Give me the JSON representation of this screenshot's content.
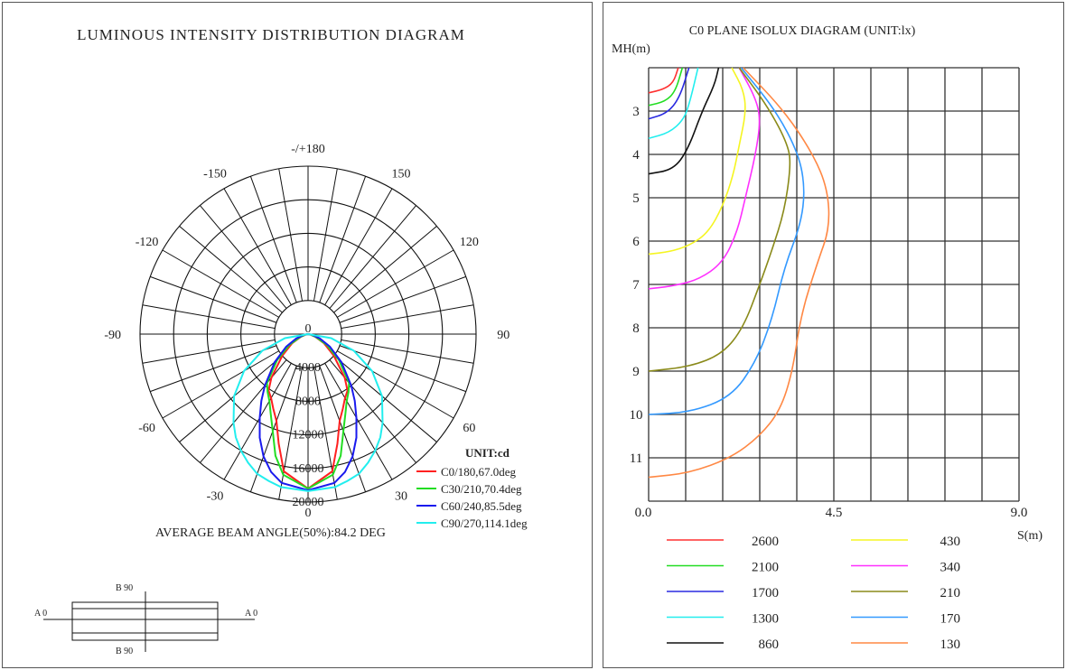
{
  "chart_data": [
    {
      "type": "polar",
      "title": "LUMINOUS INTENSITY DISTRIBUTION DIAGRAM",
      "unit_label": "UNIT:cd",
      "radial_ticks": [
        "0",
        "4000",
        "8000",
        "12000",
        "16000",
        "20000"
      ],
      "radial_max": 20000,
      "angle_labels": [
        {
          "angle": 180,
          "text": "-/+180"
        },
        {
          "angle": 150,
          "text": "150"
        },
        {
          "angle": -150,
          "text": "-150"
        },
        {
          "angle": 120,
          "text": "120"
        },
        {
          "angle": -120,
          "text": "-120"
        },
        {
          "angle": 90,
          "text": "90"
        },
        {
          "angle": -90,
          "text": "-90"
        },
        {
          "angle": 60,
          "text": "60"
        },
        {
          "angle": -60,
          "text": "-60"
        },
        {
          "angle": 30,
          "text": "30"
        },
        {
          "angle": -30,
          "text": "-30"
        },
        {
          "angle": 0,
          "text": "0"
        }
      ],
      "angles": [
        0,
        10,
        15,
        20,
        25,
        30,
        35,
        40,
        50,
        60,
        70,
        80,
        90
      ],
      "series": [
        {
          "name": "C0/180,67.0deg",
          "color": "#ff2020",
          "values": [
            18400,
            16600,
            13500,
            11000,
            9800,
            8800,
            8200,
            6800,
            4000,
            2200,
            900,
            200,
            0
          ]
        },
        {
          "name": "C30/210,70.4deg",
          "color": "#22dd22",
          "values": [
            18400,
            17000,
            15000,
            12300,
            10500,
            9200,
            8400,
            7600,
            4800,
            2600,
            1000,
            300,
            0
          ]
        },
        {
          "name": "C60/240,85.5deg",
          "color": "#1a1aee",
          "values": [
            18600,
            18000,
            17000,
            15500,
            13600,
            11500,
            9700,
            8000,
            5200,
            3000,
            1500,
            500,
            0
          ]
        },
        {
          "name": "C90/270,114.1deg",
          "color": "#22eeee",
          "values": [
            18700,
            18500,
            18100,
            17700,
            16900,
            16000,
            15000,
            13800,
            11500,
            8800,
            5800,
            2800,
            0
          ]
        }
      ],
      "beam_angle_text": "AVERAGE BEAM ANGLE(50%):84.2 DEG",
      "luminaire_key": {
        "a_label": "A 0",
        "b_label": "B 90"
      }
    },
    {
      "type": "line",
      "title": "C0 PLANE ISOLUX DIAGRAM (UNIT:lx)",
      "ylabel": "MH(m)",
      "xlabel": "S(m)",
      "xlim": [
        0,
        9
      ],
      "ylim": [
        2,
        12
      ],
      "x_ticks": [
        "0.0",
        "4.5",
        "9.0"
      ],
      "x_tick_values": [
        0,
        4.5,
        9
      ],
      "y_ticks": [
        "3",
        "4",
        "5",
        "6",
        "7",
        "8",
        "9",
        "10",
        "11"
      ],
      "grid": true,
      "series": [
        {
          "name": "2600",
          "color": "#ff3030",
          "points": [
            [
              0,
              2.58
            ],
            [
              0.35,
              2.5
            ],
            [
              0.6,
              2.35
            ],
            [
              0.72,
              2.0
            ]
          ]
        },
        {
          "name": "2100",
          "color": "#22dd22",
          "points": [
            [
              0,
              2.87
            ],
            [
              0.4,
              2.78
            ],
            [
              0.65,
              2.55
            ],
            [
              0.82,
              2.0
            ]
          ]
        },
        {
          "name": "1700",
          "color": "#2a2ae0",
          "points": [
            [
              0,
              3.18
            ],
            [
              0.45,
              3.05
            ],
            [
              0.75,
              2.7
            ],
            [
              0.98,
              2.0
            ]
          ]
        },
        {
          "name": "1300",
          "color": "#22eeee",
          "points": [
            [
              0,
              3.63
            ],
            [
              0.5,
              3.5
            ],
            [
              0.85,
              3.2
            ],
            [
              1.0,
              2.8
            ],
            [
              1.2,
              2.0
            ]
          ]
        },
        {
          "name": "860",
          "color": "#111111",
          "points": [
            [
              0,
              4.45
            ],
            [
              0.6,
              4.35
            ],
            [
              0.95,
              3.9
            ],
            [
              1.3,
              3.0
            ],
            [
              1.6,
              2.4
            ],
            [
              1.7,
              2.0
            ]
          ]
        },
        {
          "name": "430",
          "color": "#f5f522",
          "points": [
            [
              2.02,
              2
            ],
            [
              2.3,
              2.5
            ],
            [
              2.37,
              3
            ],
            [
              2.2,
              3.8
            ],
            [
              2.05,
              4.5
            ],
            [
              1.8,
              5.2
            ],
            [
              1.45,
              5.8
            ],
            [
              1.0,
              6.1
            ],
            [
              0.5,
              6.25
            ],
            [
              0,
              6.3
            ]
          ]
        },
        {
          "name": "340",
          "color": "#ff30ff",
          "points": [
            [
              2.2,
              2
            ],
            [
              2.6,
              2.7
            ],
            [
              2.72,
              3.2
            ],
            [
              2.6,
              4
            ],
            [
              2.35,
              5
            ],
            [
              2.15,
              5.8
            ],
            [
              1.8,
              6.5
            ],
            [
              1.2,
              6.9
            ],
            [
              0.5,
              7.05
            ],
            [
              0,
              7.1
            ]
          ]
        },
        {
          "name": "210",
          "color": "#8a8a1a",
          "points": [
            [
              2.2,
              2
            ],
            [
              2.9,
              2.9
            ],
            [
              3.4,
              3.8
            ],
            [
              3.45,
              4.3
            ],
            [
              3.3,
              5.3
            ],
            [
              3.0,
              6.2
            ],
            [
              2.7,
              7.0
            ],
            [
              2.3,
              8.0
            ],
            [
              1.8,
              8.6
            ],
            [
              1.0,
              8.9
            ],
            [
              0,
              9.0
            ]
          ]
        },
        {
          "name": "170",
          "color": "#3399ff",
          "points": [
            [
              2.25,
              2
            ],
            [
              3.1,
              3.0
            ],
            [
              3.65,
              4.0
            ],
            [
              3.8,
              4.8
            ],
            [
              3.7,
              5.6
            ],
            [
              3.3,
              6.6
            ],
            [
              3.0,
              7.8
            ],
            [
              2.6,
              8.8
            ],
            [
              2.0,
              9.6
            ],
            [
              1.0,
              9.95
            ],
            [
              0,
              10.0
            ]
          ]
        },
        {
          "name": "130",
          "color": "#ff8844",
          "points": [
            [
              2.3,
              2
            ],
            [
              3.3,
              3.0
            ],
            [
              4.0,
              4.0
            ],
            [
              4.35,
              4.8
            ],
            [
              4.4,
              5.7
            ],
            [
              4.1,
              6.5
            ],
            [
              3.7,
              7.7
            ],
            [
              3.5,
              9.0
            ],
            [
              3.2,
              9.9
            ],
            [
              2.7,
              10.5
            ],
            [
              2.0,
              11.0
            ],
            [
              1.0,
              11.35
            ],
            [
              0,
              11.45
            ]
          ]
        }
      ]
    }
  ]
}
